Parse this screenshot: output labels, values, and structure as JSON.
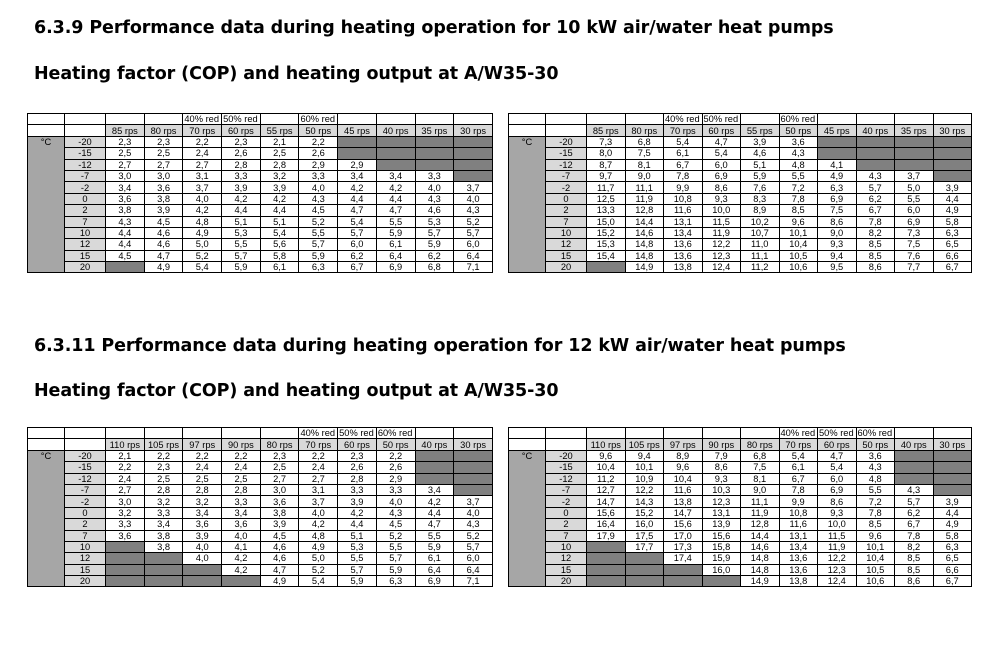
{
  "sections": [
    {
      "heading": "6.3.9 Performance data during heating operation for 10 kW air/water heat pumps",
      "subheading": "Heating factor (COP) and heating output at A/W35-30",
      "rps": [
        "85 rps",
        "80 rps",
        "70 rps",
        "60 rps",
        "55 rps",
        "50 rps",
        "45 rps",
        "40 rps",
        "35 rps",
        "30 rps"
      ],
      "red": [
        "",
        "",
        "40% red",
        "50% red",
        "",
        "60% red",
        "",
        "",
        "",
        ""
      ],
      "unit": "°C",
      "temps": [
        "-20",
        "-15",
        "-12",
        "-7",
        "-2",
        "0",
        "2",
        "7",
        "10",
        "12",
        "15",
        "20"
      ],
      "tables": [
        {
          "label": "Heating factor (COP)",
          "rows": [
            [
              "2,3",
              "2,3",
              "2,2",
              "2,3",
              "2,1",
              "2,2",
              null,
              null,
              null,
              null
            ],
            [
              "2,5",
              "2,5",
              "2,4",
              "2,6",
              "2,5",
              "2,6",
              null,
              null,
              null,
              null
            ],
            [
              "2,7",
              "2,7",
              "2,7",
              "2,8",
              "2,8",
              "2,9",
              "2,9",
              null,
              null,
              null
            ],
            [
              "3,0",
              "3,0",
              "3,1",
              "3,3",
              "3,2",
              "3,3",
              "3,4",
              "3,4",
              "3,3",
              null
            ],
            [
              "3,4",
              "3,6",
              "3,7",
              "3,9",
              "3,9",
              "4,0",
              "4,2",
              "4,2",
              "4,0",
              "3,7"
            ],
            [
              "3,6",
              "3,8",
              "4,0",
              "4,2",
              "4,2",
              "4,3",
              "4,4",
              "4,4",
              "4,3",
              "4,0"
            ],
            [
              "3,8",
              "3,9",
              "4,2",
              "4,4",
              "4,4",
              "4,5",
              "4,7",
              "4,7",
              "4,6",
              "4,3"
            ],
            [
              "4,3",
              "4,5",
              "4,8",
              "5,1",
              "5,1",
              "5,2",
              "5,4",
              "5,5",
              "5,3",
              "5,2"
            ],
            [
              "4,4",
              "4,6",
              "4,9",
              "5,3",
              "5,4",
              "5,5",
              "5,7",
              "5,9",
              "5,7",
              "5,7"
            ],
            [
              "4,4",
              "4,6",
              "5,0",
              "5,5",
              "5,6",
              "5,7",
              "6,0",
              "6,1",
              "5,9",
              "6,0"
            ],
            [
              "4,5",
              "4,7",
              "5,2",
              "5,7",
              "5,8",
              "5,9",
              "6,2",
              "6,4",
              "6,2",
              "6,4"
            ],
            [
              null,
              "4,9",
              "5,4",
              "5,9",
              "6,1",
              "6,3",
              "6,7",
              "6,9",
              "6,8",
              "7,1"
            ]
          ]
        },
        {
          "label": "Heating output",
          "rows": [
            [
              "7,3",
              "6,8",
              "5,4",
              "4,7",
              "3,9",
              "3,6",
              null,
              null,
              null,
              null
            ],
            [
              "8,0",
              "7,5",
              "6,1",
              "5,4",
              "4,6",
              "4,3",
              null,
              null,
              null,
              null
            ],
            [
              "8,7",
              "8,1",
              "6,7",
              "6,0",
              "5,1",
              "4,8",
              "4,1",
              null,
              null,
              null
            ],
            [
              "9,7",
              "9,0",
              "7,8",
              "6,9",
              "5,9",
              "5,5",
              "4,9",
              "4,3",
              "3,7",
              null
            ],
            [
              "11,7",
              "11,1",
              "9,9",
              "8,6",
              "7,6",
              "7,2",
              "6,3",
              "5,7",
              "5,0",
              "3,9"
            ],
            [
              "12,5",
              "11,9",
              "10,8",
              "9,3",
              "8,3",
              "7,8",
              "6,9",
              "6,2",
              "5,5",
              "4,4"
            ],
            [
              "13,3",
              "12,8",
              "11,6",
              "10,0",
              "8,9",
              "8,5",
              "7,5",
              "6,7",
              "6,0",
              "4,9"
            ],
            [
              "15,0",
              "14,4",
              "13,1",
              "11,5",
              "10,2",
              "9,6",
              "8,6",
              "7,8",
              "6,9",
              "5,8"
            ],
            [
              "15,2",
              "14,6",
              "13,4",
              "11,9",
              "10,7",
              "10,1",
              "9,0",
              "8,2",
              "7,3",
              "6,3"
            ],
            [
              "15,3",
              "14,8",
              "13,6",
              "12,2",
              "11,0",
              "10,4",
              "9,3",
              "8,5",
              "7,5",
              "6,5"
            ],
            [
              "15,4",
              "14,8",
              "13,6",
              "12,3",
              "11,1",
              "10,5",
              "9,4",
              "8,5",
              "7,6",
              "6,6"
            ],
            [
              null,
              "14,9",
              "13,8",
              "12,4",
              "11,2",
              "10,6",
              "9,5",
              "8,6",
              "7,7",
              "6,7"
            ]
          ]
        }
      ]
    },
    {
      "heading": "6.3.11 Performance data during heating operation for 12 kW air/water heat pumps",
      "subheading": "Heating factor (COP) and heating output at A/W35-30",
      "rps": [
        "110 rps",
        "105 rps",
        "97 rps",
        "90 rps",
        "80 rps",
        "70 rps",
        "60 rps",
        "50 rps",
        "40 rps",
        "30 rps"
      ],
      "red": [
        "",
        "",
        "",
        "",
        "",
        "40% red",
        "50% red",
        "60% red",
        "",
        ""
      ],
      "unit": "°C",
      "temps": [
        "-20",
        "-15",
        "-12",
        "-7",
        "-2",
        "0",
        "2",
        "7",
        "10",
        "12",
        "15",
        "20"
      ],
      "tables": [
        {
          "label": "Heating factor (COP)",
          "rows": [
            [
              "2,1",
              "2,2",
              "2,2",
              "2,2",
              "2,3",
              "2,2",
              "2,3",
              "2,2",
              null,
              null
            ],
            [
              "2,2",
              "2,3",
              "2,4",
              "2,4",
              "2,5",
              "2,4",
              "2,6",
              "2,6",
              null,
              null
            ],
            [
              "2,4",
              "2,5",
              "2,5",
              "2,5",
              "2,7",
              "2,7",
              "2,8",
              "2,9",
              null,
              null
            ],
            [
              "2,7",
              "2,8",
              "2,8",
              "2,8",
              "3,0",
              "3,1",
              "3,3",
              "3,3",
              "3,4",
              null
            ],
            [
              "3,0",
              "3,2",
              "3,2",
              "3,3",
              "3,6",
              "3,7",
              "3,9",
              "4,0",
              "4,2",
              "3,7"
            ],
            [
              "3,2",
              "3,3",
              "3,4",
              "3,4",
              "3,8",
              "4,0",
              "4,2",
              "4,3",
              "4,4",
              "4,0"
            ],
            [
              "3,3",
              "3,4",
              "3,6",
              "3,6",
              "3,9",
              "4,2",
              "4,4",
              "4,5",
              "4,7",
              "4,3"
            ],
            [
              "3,6",
              "3,8",
              "3,9",
              "4,0",
              "4,5",
              "4,8",
              "5,1",
              "5,2",
              "5,5",
              "5,2"
            ],
            [
              null,
              "3,8",
              "4,0",
              "4,1",
              "4,6",
              "4,9",
              "5,3",
              "5,5",
              "5,9",
              "5,7"
            ],
            [
              null,
              null,
              "4,0",
              "4,2",
              "4,6",
              "5,0",
              "5,5",
              "5,7",
              "6,1",
              "6,0"
            ],
            [
              null,
              null,
              null,
              "4,2",
              "4,7",
              "5,2",
              "5,7",
              "5,9",
              "6,4",
              "6,4"
            ],
            [
              null,
              null,
              null,
              null,
              "4,9",
              "5,4",
              "5,9",
              "6,3",
              "6,9",
              "7,1"
            ]
          ]
        },
        {
          "label": "Heating output",
          "rows": [
            [
              "9,6",
              "9,4",
              "8,9",
              "7,9",
              "6,8",
              "5,4",
              "4,7",
              "3,6",
              null,
              null
            ],
            [
              "10,4",
              "10,1",
              "9,6",
              "8,6",
              "7,5",
              "6,1",
              "5,4",
              "4,3",
              null,
              null
            ],
            [
              "11,2",
              "10,9",
              "10,4",
              "9,3",
              "8,1",
              "6,7",
              "6,0",
              "4,8",
              null,
              null
            ],
            [
              "12,7",
              "12,2",
              "11,6",
              "10,3",
              "9,0",
              "7,8",
              "6,9",
              "5,5",
              "4,3",
              null
            ],
            [
              "14,7",
              "14,3",
              "13,8",
              "12,3",
              "11,1",
              "9,9",
              "8,6",
              "7,2",
              "5,7",
              "3,9"
            ],
            [
              "15,6",
              "15,2",
              "14,7",
              "13,1",
              "11,9",
              "10,8",
              "9,3",
              "7,8",
              "6,2",
              "4,4"
            ],
            [
              "16,4",
              "16,0",
              "15,6",
              "13,9",
              "12,8",
              "11,6",
              "10,0",
              "8,5",
              "6,7",
              "4,9"
            ],
            [
              "17,9",
              "17,5",
              "17,0",
              "15,6",
              "14,4",
              "13,1",
              "11,5",
              "9,6",
              "7,8",
              "5,8"
            ],
            [
              null,
              "17,7",
              "17,3",
              "15,8",
              "14,6",
              "13,4",
              "11,9",
              "10,1",
              "8,2",
              "6,3"
            ],
            [
              null,
              null,
              "17,4",
              "15,9",
              "14,8",
              "13,6",
              "12,2",
              "10,4",
              "8,5",
              "6,5"
            ],
            [
              null,
              null,
              null,
              "16,0",
              "14,8",
              "13,6",
              "12,3",
              "10,5",
              "8,5",
              "6,6"
            ],
            [
              null,
              null,
              null,
              null,
              "14,9",
              "13,8",
              "12,4",
              "10,6",
              "8,6",
              "6,7"
            ]
          ]
        }
      ]
    }
  ]
}
